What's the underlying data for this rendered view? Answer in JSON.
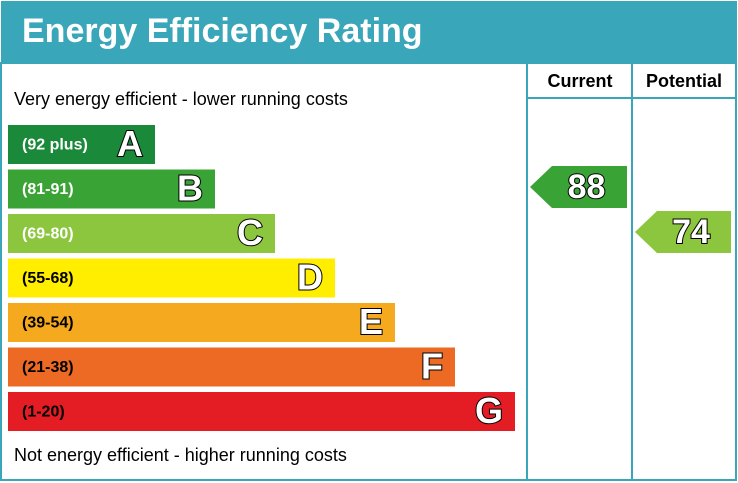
{
  "header": {
    "title": "Energy Efficiency Rating"
  },
  "columns": [
    "Current",
    "Potential"
  ],
  "top_note": "Very energy efficient - lower running costs",
  "bottom_note": "Not energy efficient - higher running costs",
  "bands": [
    {
      "range": "(92 plus)",
      "letter": "A",
      "color": "#1a8a3a"
    },
    {
      "range": "(81-91)",
      "letter": "B",
      "color": "#3aa335"
    },
    {
      "range": "(69-80)",
      "letter": "C",
      "color": "#8cc63e"
    },
    {
      "range": "(55-68)",
      "letter": "D",
      "color": "#ffee00"
    },
    {
      "range": "(39-54)",
      "letter": "E",
      "color": "#f4a91e"
    },
    {
      "range": "(21-38)",
      "letter": "F",
      "color": "#ec6a24"
    },
    {
      "range": "(1-20)",
      "letter": "G",
      "color": "#e31d23"
    }
  ],
  "current": {
    "value": "88",
    "color": "#3aa335"
  },
  "potential": {
    "value": "74",
    "color": "#8cc63e"
  }
}
